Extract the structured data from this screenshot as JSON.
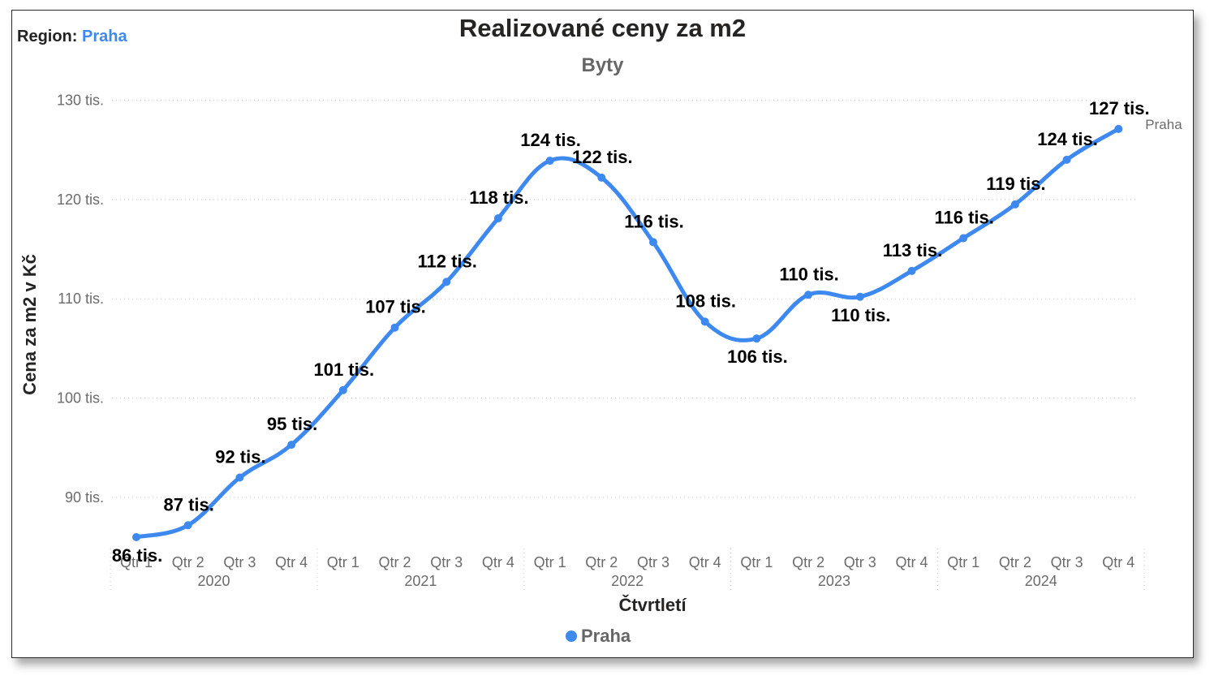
{
  "filter": {
    "label": "Region:",
    "value": "Praha"
  },
  "chart_data": {
    "type": "line",
    "title": "Realizované ceny za m2",
    "subtitle": "Byty",
    "xlabel": "Čtvrtletí",
    "ylabel": "Cena za m2 v Kč",
    "ylim": [
      82000,
      132000
    ],
    "yticks": [
      90000,
      100000,
      110000,
      120000,
      130000
    ],
    "ytick_labels": [
      "90 tis.",
      "100 tis.",
      "110 tis.",
      "120 tis.",
      "130 tis."
    ],
    "grid": true,
    "legend_position": "bottom-center",
    "categories": [
      "Qtr 1",
      "Qtr 2",
      "Qtr 3",
      "Qtr 4",
      "Qtr 1",
      "Qtr 2",
      "Qtr 3",
      "Qtr 4",
      "Qtr 1",
      "Qtr 2",
      "Qtr 3",
      "Qtr 4",
      "Qtr 1",
      "Qtr 2",
      "Qtr 3",
      "Qtr 4",
      "Qtr 1",
      "Qtr 2",
      "Qtr 3",
      "Qtr 4"
    ],
    "years": [
      "2020",
      "2021",
      "2022",
      "2023",
      "2024"
    ],
    "series": [
      {
        "name": "Praha",
        "color": "#3d89f0",
        "values": [
          86000,
          87200,
          92000,
          95300,
          100800,
          107100,
          111700,
          118100,
          123900,
          122200,
          115700,
          107700,
          106000,
          110400,
          110200,
          112800,
          116100,
          119500,
          124000,
          127100
        ],
        "labels": [
          "86 tis.",
          "87 tis.",
          "92 tis.",
          "95 tis.",
          "101 tis.",
          "107 tis.",
          "112 tis.",
          "118 tis.",
          "124 tis.",
          "122 tis.",
          "116 tis.",
          "108 tis.",
          "106 tis.",
          "110 tis.",
          "110 tis.",
          "113 tis.",
          "116 tis.",
          "119 tis.",
          "124 tis.",
          "127 tis."
        ]
      }
    ]
  }
}
